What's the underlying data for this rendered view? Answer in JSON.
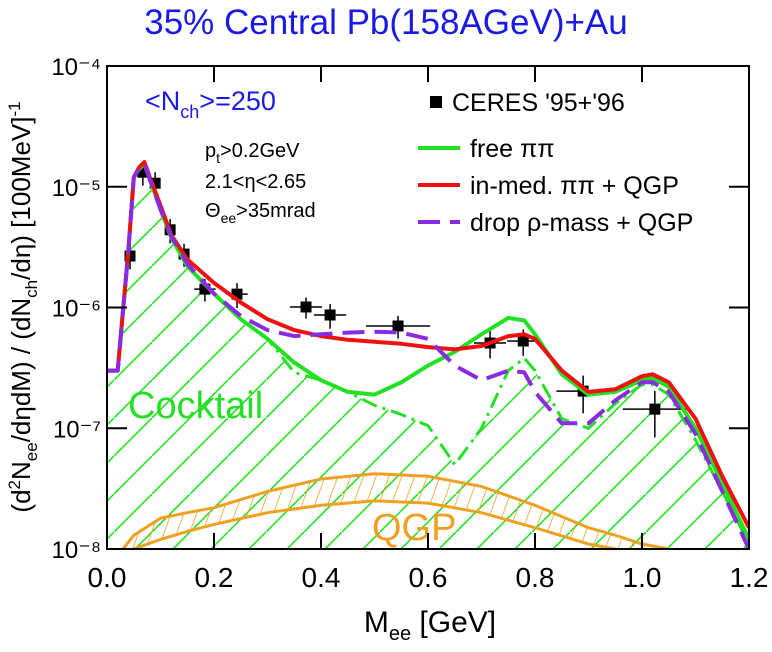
{
  "chart_data": {
    "type": "line",
    "title": "35% Central Pb(158AGeV)+Au",
    "xlabel": [
      "M",
      "ee",
      " [GeV]"
    ],
    "ylabel": [
      "(d",
      "2",
      "N",
      "ee",
      "/dηdM) / (dN",
      "ch",
      "/dη)  [100MeV]",
      "-1"
    ],
    "annotations": {
      "nch": [
        "<N",
        "ch",
        ">=250"
      ],
      "pt": [
        "p",
        "t",
        ">0.2GeV"
      ],
      "eta": "2.1<η<2.65",
      "theta": [
        "Θ",
        "ee",
        ">35mrad"
      ]
    },
    "log_y": true,
    "xlim": [
      0,
      1.2
    ],
    "ylim": [
      1e-08,
      0.0001
    ],
    "xticks": [
      {
        "value": 0,
        "label": "0.0"
      },
      0.2,
      0.4,
      0.6,
      0.8,
      {
        "value": 1,
        "label": "1.0"
      },
      1.2
    ],
    "yticks": [
      {
        "value": 1e-08,
        "label": "10⁻⁸"
      },
      {
        "value": 1e-07,
        "label": "10⁻⁷"
      },
      {
        "value": 1e-06,
        "label": "10⁻⁶"
      },
      {
        "value": 1e-05,
        "label": "10⁻⁵"
      },
      {
        "value": 0.0001,
        "label": "10⁻⁴"
      }
    ],
    "legend": "upper right",
    "x": [
      0,
      0.02,
      0.04,
      0.05,
      0.06,
      0.07,
      0.08,
      0.1,
      0.12,
      0.15,
      0.2,
      0.25,
      0.3,
      0.35,
      0.4,
      0.45,
      0.5,
      0.55,
      0.6,
      0.65,
      0.7,
      0.75,
      0.78,
      0.8,
      0.85,
      0.9,
      0.95,
      1.0,
      1.02,
      1.05,
      1.1,
      1.15,
      1.2
    ],
    "series": [
      {
        "name": "CERES  '95+'96",
        "style": "square",
        "color": "#000000",
        "x": [
          0.043,
          0.067,
          0.09,
          0.118,
          0.144,
          0.183,
          0.243,
          0.372,
          0.417,
          0.544,
          0.716,
          0.778,
          0.89,
          1.024
        ],
        "values": [
          2.67e-06,
          1.32e-05,
          1.07e-05,
          4.4e-06,
          2.77e-06,
          1.42e-06,
          1.29e-06,
          1.01e-06,
          8.67e-07,
          7.03e-07,
          5.08e-07,
          5.28e-07,
          2.03e-07,
          1.44e-07
        ],
        "yerr": [
          6e-07,
          3e-06,
          2.5e-06,
          1e-06,
          6e-07,
          3e-07,
          3e-07,
          2e-07,
          2e-07,
          1.5e-07,
          1.3e-07,
          1.3e-07,
          7e-08,
          6e-08
        ],
        "xerr": [
          0.01,
          0.01,
          0.01,
          0.01,
          0.01,
          0.02,
          0.02,
          0.03,
          0.03,
          0.06,
          0.03,
          0.03,
          0.05,
          0.06
        ]
      },
      {
        "name": "free ππ",
        "style": "solid",
        "color": "#22e022",
        "values": [
          3e-07,
          3e-07,
          3e-06,
          1.2e-05,
          1.4e-05,
          1.55e-05,
          1.15e-05,
          6.5e-06,
          3.8e-06,
          2.2e-06,
          1.3e-06,
          8e-07,
          5.5e-07,
          3.5e-07,
          2.5e-07,
          2e-07,
          1.9e-07,
          2.4e-07,
          3.3e-07,
          4.3e-07,
          6e-07,
          8.2e-07,
          7.8e-07,
          6e-07,
          2.8e-07,
          1.9e-07,
          2e-07,
          2.5e-07,
          2.6e-07,
          2.2e-07,
          1e-07,
          3.5e-08,
          1.2e-08
        ]
      },
      {
        "name": "in-med. ππ + QGP",
        "style": "solid",
        "color": "#ee1111",
        "values": [
          3e-07,
          3e-07,
          3e-06,
          1.2e-05,
          1.45e-05,
          1.6e-05,
          1.2e-05,
          7e-06,
          4e-06,
          2.5e-06,
          1.6e-06,
          1.1e-06,
          8e-07,
          6.5e-07,
          5.8e-07,
          5.4e-07,
          5.2e-07,
          5e-07,
          4.7e-07,
          4.5e-07,
          4.8e-07,
          5.8e-07,
          6e-07,
          5.5e-07,
          3e-07,
          2e-07,
          2.1e-07,
          2.7e-07,
          2.8e-07,
          2.4e-07,
          1.2e-07,
          4e-08,
          1.5e-08
        ]
      },
      {
        "name": "drop ρ-mass + QGP",
        "style": "dashed",
        "color": "#8a2be2",
        "values": [
          3e-07,
          3e-07,
          3e-06,
          1.2e-05,
          1.4e-05,
          1.55e-05,
          1.15e-05,
          6.5e-06,
          3.9e-06,
          2.3e-06,
          1.3e-06,
          8.5e-07,
          6.5e-07,
          5.8e-07,
          6e-07,
          6.2e-07,
          6.3e-07,
          6.2e-07,
          5.5e-07,
          3.3e-07,
          2.5e-07,
          3e-07,
          2.9e-07,
          2e-07,
          1.1e-07,
          1.1e-07,
          1.7e-07,
          2.4e-07,
          2.4e-07,
          2e-07,
          9e-08,
          3e-08,
          1e-08
        ]
      }
    ],
    "cocktail": {
      "name": "Cocktail",
      "color": "#22e022",
      "values": [
        3e-07,
        3e-07,
        3e-06,
        1.2e-05,
        1.4e-05,
        1.55e-05,
        1.15e-05,
        6.5e-06,
        3.8e-06,
        2.2e-06,
        1.3e-06,
        8e-07,
        5.5e-07,
        2.9e-07,
        2.5e-07,
        2e-07,
        1.55e-07,
        1.3e-07,
        1.05e-07,
        5e-08,
        1e-07,
        3e-07,
        3.8e-07,
        3e-07,
        1.2e-07,
        1e-07,
        1.6e-07,
        2.3e-07,
        2.3e-07,
        1.9e-07,
        8e-08,
        3e-08,
        1.1e-08
      ]
    },
    "qgp": {
      "name": "QGP",
      "color": "#f0a020",
      "x": [
        0.03,
        0.05,
        0.1,
        0.15,
        0.2,
        0.3,
        0.4,
        0.5,
        0.6,
        0.7,
        0.8,
        0.9,
        0.95,
        1.0,
        1.05
      ],
      "upper": [
        1e-08,
        1.3e-08,
        1.8e-08,
        2e-08,
        2.2e-08,
        3e-08,
        3.8e-08,
        4.2e-08,
        4e-08,
        3.3e-08,
        2.3e-08,
        1.5e-08,
        1.3e-08,
        1.1e-08,
        1e-08
      ],
      "lower": [
        8e-09,
        1e-08,
        1.2e-08,
        1.4e-08,
        1.6e-08,
        2e-08,
        2.3e-08,
        2.5e-08,
        2.4e-08,
        2e-08,
        1.5e-08,
        1.1e-08,
        1e-08,
        9e-09,
        8e-09
      ]
    }
  }
}
